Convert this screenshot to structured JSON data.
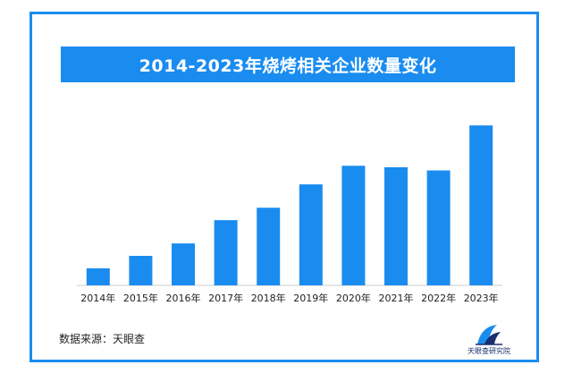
{
  "title": "2014-2023年烧烤相关企业数量变化",
  "source_label": "数据来源：天眼查",
  "logo": {
    "text": "天眼查研究院",
    "icon": "tianyancha-logo-icon"
  },
  "colors": {
    "accent": "#1a8cf0",
    "bar": "#1a8cf0",
    "axis": "#cccccc",
    "text": "#222222"
  },
  "chart_data": {
    "type": "bar",
    "title": "2014-2023年烧烤相关企业数量变化",
    "categories": [
      "2014年",
      "2015年",
      "2016年",
      "2017年",
      "2018年",
      "2019年",
      "2020年",
      "2021年",
      "2022年",
      "2023年"
    ],
    "values": [
      11,
      19,
      27,
      42,
      50,
      65,
      77,
      76,
      74,
      103
    ],
    "xlabel": "",
    "ylabel": "",
    "ylim": [
      0,
      110
    ],
    "grid": false,
    "legend": "none"
  }
}
